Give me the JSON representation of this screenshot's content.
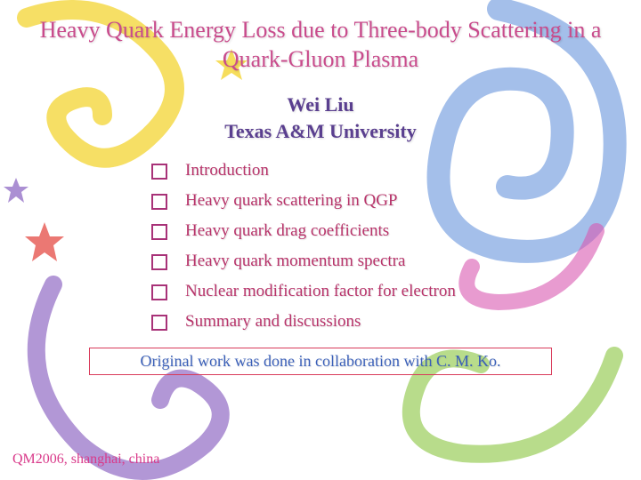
{
  "colors": {
    "title": "#c94b8c",
    "author": "#5a3f8f",
    "affiliation": "#5a3f8f",
    "bullet_marker": "#a83278",
    "bullet_text": "#b8336a",
    "footnote_border": "#d93a5a",
    "footnote_text": "#3a5fb8",
    "conference": "#d93a8a",
    "bg_swirl_blue": "#5a8ad8",
    "bg_swirl_yellow": "#f5d94a",
    "bg_swirl_magenta": "#d858b0",
    "bg_swirl_purple": "#8860c0",
    "bg_swirl_green": "#9acd5a",
    "bg_star_red": "#e8605a"
  },
  "title": "Heavy Quark Energy Loss due to Three-body  Scattering in a Quark-Gluon Plasma",
  "author": "Wei Liu",
  "affiliation": "Texas A&M University",
  "bullets": [
    "Introduction",
    "Heavy quark scattering in QGP",
    "Heavy quark drag coefficients",
    "Heavy quark momentum spectra",
    "Nuclear modification factor for electron",
    "Summary and discussions"
  ],
  "footnote": "Original work was done in collaboration with C. M. Ko.",
  "conference": "QM2006, shanghai, china"
}
